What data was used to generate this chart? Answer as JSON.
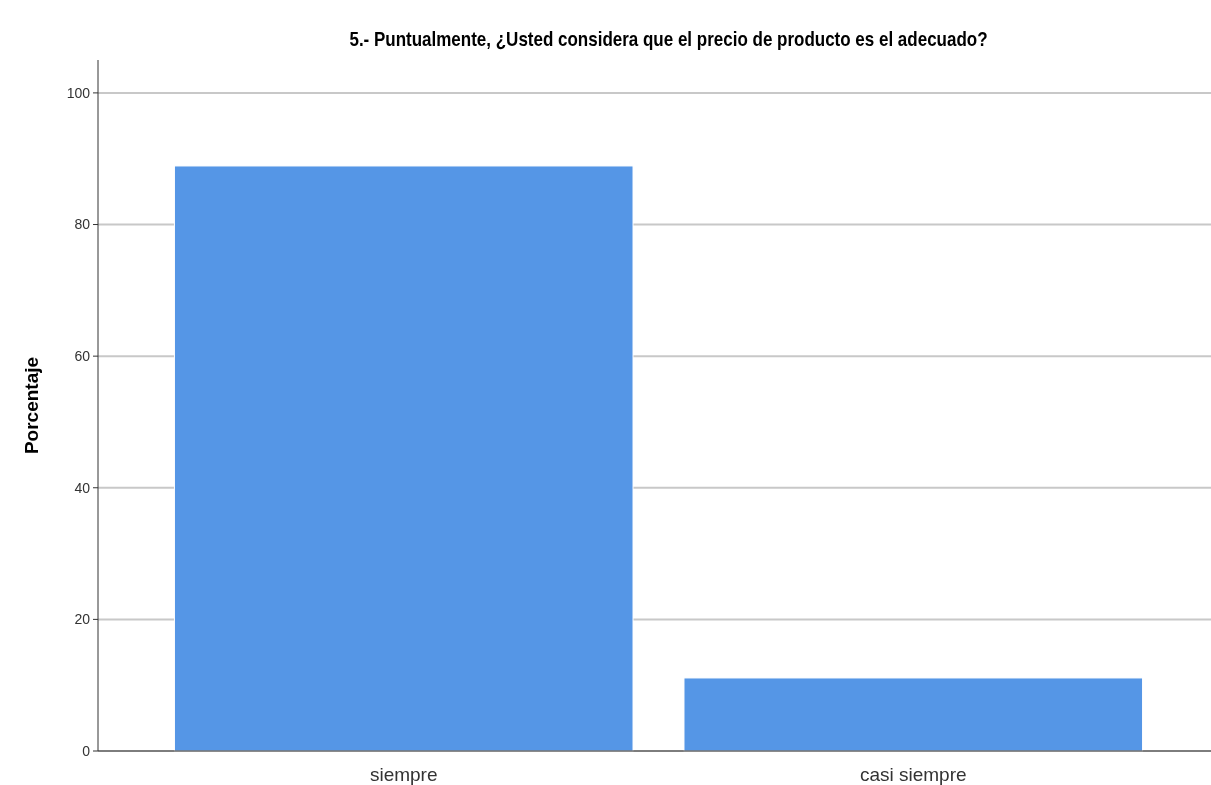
{
  "chart_data": {
    "type": "bar",
    "title": "5.- Puntualmente, ¿Usted considera que el precio de producto es el adecuado?",
    "ylabel": "Porcentaje",
    "categories": [
      "siempre",
      "casi siempre"
    ],
    "values": [
      88.9,
      11.1
    ],
    "color": "#5596e6",
    "ylim": [
      0,
      105
    ],
    "yticks": [
      0,
      20,
      40,
      60,
      80,
      100
    ],
    "grid": "y"
  }
}
